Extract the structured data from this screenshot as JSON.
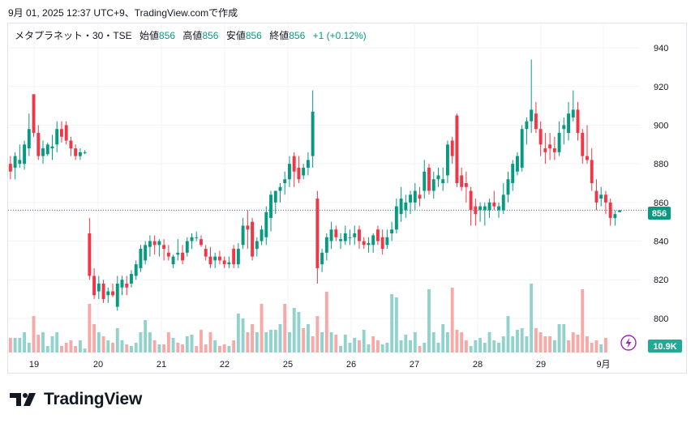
{
  "header": {
    "timestamp_line": "9月 01, 2025 12:37 UTC+9、TradingView.comで作成"
  },
  "legend": {
    "symbol": "メタプラネット・30・TSE",
    "open_label": "始値",
    "open": "856",
    "high_label": "高値",
    "high": "856",
    "low_label": "安値",
    "low": "856",
    "close_label": "終値",
    "close": "856",
    "change": "+1 (+0.12%)"
  },
  "price_tag": "856",
  "volume_tag": "10.9K",
  "brand": "TradingView",
  "colors": {
    "up": "#089981",
    "down": "#f23645",
    "up_vol": "#92d2cc",
    "down_vol": "#f7a9a7",
    "grid": "#f0f3fa"
  },
  "chart_data": {
    "type": "candlestick",
    "y_axis_ticks": [
      940,
      920,
      900,
      880,
      860,
      840,
      820,
      800
    ],
    "ylim": [
      792,
      948
    ],
    "x_axis_labels": [
      "19",
      "20",
      "21",
      "22",
      "25",
      "26",
      "27",
      "28",
      "29",
      "9月"
    ],
    "current_price": 856,
    "last_volume": "10.9K",
    "candles": [
      {
        "o": 880,
        "h": 884,
        "l": 872,
        "c": 876
      },
      {
        "o": 878,
        "h": 886,
        "l": 872,
        "c": 884
      },
      {
        "o": 880,
        "h": 890,
        "l": 878,
        "c": 882
      },
      {
        "o": 880,
        "h": 892,
        "l": 877,
        "c": 890
      },
      {
        "o": 888,
        "h": 906,
        "l": 884,
        "c": 898
      },
      {
        "o": 916,
        "h": 916,
        "l": 894,
        "c": 896
      },
      {
        "o": 896,
        "h": 900,
        "l": 882,
        "c": 884
      },
      {
        "o": 884,
        "h": 892,
        "l": 880,
        "c": 888
      },
      {
        "o": 885,
        "h": 891,
        "l": 884,
        "c": 890
      },
      {
        "o": 888,
        "h": 895,
        "l": 882,
        "c": 889
      },
      {
        "o": 890,
        "h": 902,
        "l": 886,
        "c": 898
      },
      {
        "o": 898,
        "h": 902,
        "l": 891,
        "c": 894
      },
      {
        "o": 900,
        "h": 902,
        "l": 890,
        "c": 892
      },
      {
        "o": 892,
        "h": 894,
        "l": 884,
        "c": 888
      },
      {
        "o": 888,
        "h": 890,
        "l": 882,
        "c": 884
      },
      {
        "o": 884,
        "h": 888,
        "l": 882,
        "c": 886
      },
      {
        "o": 886,
        "h": 887,
        "l": 885,
        "c": 886
      },
      {
        "o": 844,
        "h": 852,
        "l": 820,
        "c": 822
      },
      {
        "o": 822,
        "h": 826,
        "l": 810,
        "c": 812
      },
      {
        "o": 814,
        "h": 822,
        "l": 810,
        "c": 818
      },
      {
        "o": 818,
        "h": 820,
        "l": 808,
        "c": 810
      },
      {
        "o": 812,
        "h": 816,
        "l": 808,
        "c": 814
      },
      {
        "o": 814,
        "h": 818,
        "l": 811,
        "c": 812
      },
      {
        "o": 806,
        "h": 822,
        "l": 804,
        "c": 818
      },
      {
        "o": 816,
        "h": 822,
        "l": 812,
        "c": 820
      },
      {
        "o": 818,
        "h": 822,
        "l": 812,
        "c": 816
      },
      {
        "o": 818,
        "h": 825,
        "l": 816,
        "c": 823
      },
      {
        "o": 822,
        "h": 830,
        "l": 820,
        "c": 828
      },
      {
        "o": 826,
        "h": 838,
        "l": 824,
        "c": 836
      },
      {
        "o": 830,
        "h": 840,
        "l": 828,
        "c": 838
      },
      {
        "o": 837,
        "h": 843,
        "l": 832,
        "c": 840
      },
      {
        "o": 840,
        "h": 843,
        "l": 833,
        "c": 838
      },
      {
        "o": 838,
        "h": 841,
        "l": 832,
        "c": 840
      },
      {
        "o": 838,
        "h": 841,
        "l": 830,
        "c": 836
      },
      {
        "o": 834,
        "h": 838,
        "l": 830,
        "c": 832
      },
      {
        "o": 828,
        "h": 833,
        "l": 826,
        "c": 832
      },
      {
        "o": 833,
        "h": 841,
        "l": 830,
        "c": 834
      },
      {
        "o": 834,
        "h": 838,
        "l": 828,
        "c": 830
      },
      {
        "o": 834,
        "h": 842,
        "l": 832,
        "c": 840
      },
      {
        "o": 840,
        "h": 844,
        "l": 836,
        "c": 842
      },
      {
        "o": 842,
        "h": 845,
        "l": 840,
        "c": 842
      },
      {
        "o": 841,
        "h": 843,
        "l": 837,
        "c": 838
      },
      {
        "o": 836,
        "h": 838,
        "l": 830,
        "c": 832
      },
      {
        "o": 832,
        "h": 837,
        "l": 826,
        "c": 828
      },
      {
        "o": 830,
        "h": 834,
        "l": 826,
        "c": 832
      },
      {
        "o": 832,
        "h": 835,
        "l": 828,
        "c": 830
      },
      {
        "o": 830,
        "h": 832,
        "l": 826,
        "c": 828
      },
      {
        "o": 828,
        "h": 832,
        "l": 826,
        "c": 829
      },
      {
        "o": 836,
        "h": 838,
        "l": 826,
        "c": 828
      },
      {
        "o": 828,
        "h": 839,
        "l": 826,
        "c": 836
      },
      {
        "o": 838,
        "h": 852,
        "l": 836,
        "c": 848
      },
      {
        "o": 848,
        "h": 856,
        "l": 836,
        "c": 846
      },
      {
        "o": 850,
        "h": 852,
        "l": 830,
        "c": 832
      },
      {
        "o": 836,
        "h": 842,
        "l": 832,
        "c": 840
      },
      {
        "o": 840,
        "h": 848,
        "l": 838,
        "c": 846
      },
      {
        "o": 842,
        "h": 858,
        "l": 838,
        "c": 855
      },
      {
        "o": 852,
        "h": 866,
        "l": 845,
        "c": 864
      },
      {
        "o": 860,
        "h": 866,
        "l": 854,
        "c": 866
      },
      {
        "o": 866,
        "h": 870,
        "l": 860,
        "c": 868
      },
      {
        "o": 870,
        "h": 876,
        "l": 864,
        "c": 872
      },
      {
        "o": 872,
        "h": 884,
        "l": 868,
        "c": 880
      },
      {
        "o": 884,
        "h": 886,
        "l": 868,
        "c": 876
      },
      {
        "o": 878,
        "h": 884,
        "l": 870,
        "c": 872
      },
      {
        "o": 874,
        "h": 880,
        "l": 872,
        "c": 878
      },
      {
        "o": 878,
        "h": 886,
        "l": 874,
        "c": 882
      },
      {
        "o": 884,
        "h": 918,
        "l": 878,
        "c": 907
      },
      {
        "o": 862,
        "h": 866,
        "l": 818,
        "c": 826
      },
      {
        "o": 828,
        "h": 836,
        "l": 824,
        "c": 834
      },
      {
        "o": 834,
        "h": 844,
        "l": 830,
        "c": 842
      },
      {
        "o": 840,
        "h": 850,
        "l": 836,
        "c": 846
      },
      {
        "o": 846,
        "h": 848,
        "l": 840,
        "c": 842
      },
      {
        "o": 840,
        "h": 844,
        "l": 836,
        "c": 841
      },
      {
        "o": 840,
        "h": 848,
        "l": 838,
        "c": 844
      },
      {
        "o": 842,
        "h": 846,
        "l": 838,
        "c": 842
      },
      {
        "o": 842,
        "h": 848,
        "l": 838,
        "c": 844
      },
      {
        "o": 846,
        "h": 848,
        "l": 836,
        "c": 840
      },
      {
        "o": 840,
        "h": 842,
        "l": 836,
        "c": 838
      },
      {
        "o": 838,
        "h": 842,
        "l": 834,
        "c": 839
      },
      {
        "o": 838,
        "h": 844,
        "l": 834,
        "c": 843
      },
      {
        "o": 846,
        "h": 848,
        "l": 838,
        "c": 840
      },
      {
        "o": 842,
        "h": 846,
        "l": 833,
        "c": 836
      },
      {
        "o": 838,
        "h": 846,
        "l": 836,
        "c": 842
      },
      {
        "o": 844,
        "h": 850,
        "l": 840,
        "c": 846
      },
      {
        "o": 846,
        "h": 862,
        "l": 844,
        "c": 858
      },
      {
        "o": 854,
        "h": 868,
        "l": 850,
        "c": 862
      },
      {
        "o": 856,
        "h": 864,
        "l": 852,
        "c": 860
      },
      {
        "o": 860,
        "h": 866,
        "l": 854,
        "c": 864
      },
      {
        "o": 860,
        "h": 870,
        "l": 856,
        "c": 866
      },
      {
        "o": 864,
        "h": 868,
        "l": 858,
        "c": 862
      },
      {
        "o": 866,
        "h": 882,
        "l": 862,
        "c": 876
      },
      {
        "o": 878,
        "h": 880,
        "l": 864,
        "c": 866
      },
      {
        "o": 866,
        "h": 876,
        "l": 862,
        "c": 872
      },
      {
        "o": 872,
        "h": 878,
        "l": 868,
        "c": 874
      },
      {
        "o": 870,
        "h": 878,
        "l": 866,
        "c": 872
      },
      {
        "o": 874,
        "h": 892,
        "l": 870,
        "c": 890
      },
      {
        "o": 892,
        "h": 894,
        "l": 880,
        "c": 884
      },
      {
        "o": 905,
        "h": 906,
        "l": 868,
        "c": 870
      },
      {
        "o": 874,
        "h": 878,
        "l": 866,
        "c": 868
      },
      {
        "o": 870,
        "h": 876,
        "l": 860,
        "c": 868
      },
      {
        "o": 866,
        "h": 868,
        "l": 848,
        "c": 856
      },
      {
        "o": 858,
        "h": 862,
        "l": 848,
        "c": 854
      },
      {
        "o": 856,
        "h": 860,
        "l": 850,
        "c": 858
      },
      {
        "o": 856,
        "h": 860,
        "l": 848,
        "c": 858
      },
      {
        "o": 856,
        "h": 862,
        "l": 852,
        "c": 860
      },
      {
        "o": 860,
        "h": 866,
        "l": 856,
        "c": 858
      },
      {
        "o": 856,
        "h": 860,
        "l": 852,
        "c": 858
      },
      {
        "o": 856,
        "h": 870,
        "l": 854,
        "c": 864
      },
      {
        "o": 864,
        "h": 876,
        "l": 860,
        "c": 872
      },
      {
        "o": 870,
        "h": 882,
        "l": 866,
        "c": 880
      },
      {
        "o": 876,
        "h": 886,
        "l": 874,
        "c": 884
      },
      {
        "o": 878,
        "h": 900,
        "l": 876,
        "c": 898
      },
      {
        "o": 898,
        "h": 904,
        "l": 890,
        "c": 902
      },
      {
        "o": 902,
        "h": 934,
        "l": 896,
        "c": 908
      },
      {
        "o": 906,
        "h": 912,
        "l": 896,
        "c": 898
      },
      {
        "o": 898,
        "h": 902,
        "l": 884,
        "c": 890
      },
      {
        "o": 888,
        "h": 896,
        "l": 880,
        "c": 886
      },
      {
        "o": 890,
        "h": 896,
        "l": 882,
        "c": 888
      },
      {
        "o": 888,
        "h": 894,
        "l": 882,
        "c": 886
      },
      {
        "o": 886,
        "h": 902,
        "l": 884,
        "c": 896
      },
      {
        "o": 898,
        "h": 904,
        "l": 890,
        "c": 900
      },
      {
        "o": 896,
        "h": 912,
        "l": 892,
        "c": 906
      },
      {
        "o": 904,
        "h": 918,
        "l": 902,
        "c": 908
      },
      {
        "o": 908,
        "h": 912,
        "l": 892,
        "c": 896
      },
      {
        "o": 896,
        "h": 898,
        "l": 880,
        "c": 884
      },
      {
        "o": 884,
        "h": 900,
        "l": 880,
        "c": 882
      },
      {
        "o": 882,
        "h": 888,
        "l": 866,
        "c": 870
      },
      {
        "o": 866,
        "h": 872,
        "l": 856,
        "c": 860
      },
      {
        "o": 862,
        "h": 868,
        "l": 858,
        "c": 864
      },
      {
        "o": 864,
        "h": 866,
        "l": 854,
        "c": 860
      },
      {
        "o": 860,
        "h": 862,
        "l": 848,
        "c": 852
      },
      {
        "o": 852,
        "h": 856,
        "l": 848,
        "c": 854
      },
      {
        "o": 855,
        "h": 856,
        "l": 855,
        "c": 856
      }
    ],
    "volumes": [
      {
        "v": 0.18,
        "up": false
      },
      {
        "v": 0.18,
        "up": true
      },
      {
        "v": 0.18,
        "up": true
      },
      {
        "v": 0.25,
        "up": true
      },
      {
        "v": 0.12,
        "up": true
      },
      {
        "v": 0.45,
        "up": false
      },
      {
        "v": 0.22,
        "up": false
      },
      {
        "v": 0.25,
        "up": true
      },
      {
        "v": 0.08,
        "up": true
      },
      {
        "v": 0.2,
        "up": true
      },
      {
        "v": 0.25,
        "up": true
      },
      {
        "v": 0.08,
        "up": false
      },
      {
        "v": 0.12,
        "up": false
      },
      {
        "v": 0.15,
        "up": false
      },
      {
        "v": 0.08,
        "up": false
      },
      {
        "v": 0.15,
        "up": true
      },
      {
        "v": 0.05,
        "up": true
      },
      {
        "v": 0.6,
        "up": false
      },
      {
        "v": 0.35,
        "up": false
      },
      {
        "v": 0.25,
        "up": true
      },
      {
        "v": 0.2,
        "up": false
      },
      {
        "v": 0.15,
        "up": true
      },
      {
        "v": 0.12,
        "up": false
      },
      {
        "v": 0.3,
        "up": true
      },
      {
        "v": 0.15,
        "up": true
      },
      {
        "v": 0.1,
        "up": false
      },
      {
        "v": 0.08,
        "up": true
      },
      {
        "v": 0.12,
        "up": true
      },
      {
        "v": 0.25,
        "up": true
      },
      {
        "v": 0.4,
        "up": true
      },
      {
        "v": 0.25,
        "up": true
      },
      {
        "v": 0.15,
        "up": false
      },
      {
        "v": 0.1,
        "up": true
      },
      {
        "v": 0.1,
        "up": false
      },
      {
        "v": 0.25,
        "up": false
      },
      {
        "v": 0.18,
        "up": true
      },
      {
        "v": 0.12,
        "up": false
      },
      {
        "v": 0.1,
        "up": false
      },
      {
        "v": 0.2,
        "up": true
      },
      {
        "v": 0.22,
        "up": true
      },
      {
        "v": 0.08,
        "up": false
      },
      {
        "v": 0.28,
        "up": false
      },
      {
        "v": 0.1,
        "up": false
      },
      {
        "v": 0.25,
        "up": false
      },
      {
        "v": 0.15,
        "up": true
      },
      {
        "v": 0.08,
        "up": false
      },
      {
        "v": 0.1,
        "up": false
      },
      {
        "v": 0.08,
        "up": true
      },
      {
        "v": 0.15,
        "up": false
      },
      {
        "v": 0.48,
        "up": true
      },
      {
        "v": 0.42,
        "up": true
      },
      {
        "v": 0.25,
        "up": false
      },
      {
        "v": 0.35,
        "up": false
      },
      {
        "v": 0.25,
        "up": true
      },
      {
        "v": 0.6,
        "up": false
      },
      {
        "v": 0.25,
        "up": true
      },
      {
        "v": 0.28,
        "up": true
      },
      {
        "v": 0.28,
        "up": true
      },
      {
        "v": 0.35,
        "up": true
      },
      {
        "v": 0.6,
        "up": false
      },
      {
        "v": 0.25,
        "up": true
      },
      {
        "v": 0.55,
        "up": true
      },
      {
        "v": 0.5,
        "up": true
      },
      {
        "v": 0.3,
        "up": false
      },
      {
        "v": 0.35,
        "up": true
      },
      {
        "v": 0.2,
        "up": false
      },
      {
        "v": 0.45,
        "up": false
      },
      {
        "v": 0.25,
        "up": true
      },
      {
        "v": 0.75,
        "up": false
      },
      {
        "v": 0.25,
        "up": true
      },
      {
        "v": 0.22,
        "up": false
      },
      {
        "v": 0.08,
        "up": true
      },
      {
        "v": 0.22,
        "up": true
      },
      {
        "v": 0.12,
        "up": true
      },
      {
        "v": 0.18,
        "up": true
      },
      {
        "v": 0.15,
        "up": false
      },
      {
        "v": 0.28,
        "up": true
      },
      {
        "v": 0.1,
        "up": true
      },
      {
        "v": 0.2,
        "up": false
      },
      {
        "v": 0.15,
        "up": false
      },
      {
        "v": 0.1,
        "up": true
      },
      {
        "v": 0.12,
        "up": true
      },
      {
        "v": 0.72,
        "up": true
      },
      {
        "v": 0.68,
        "up": true
      },
      {
        "v": 0.15,
        "up": true
      },
      {
        "v": 0.22,
        "up": true
      },
      {
        "v": 0.15,
        "up": true
      },
      {
        "v": 0.25,
        "up": true
      },
      {
        "v": 0.08,
        "up": false
      },
      {
        "v": 0.12,
        "up": true
      },
      {
        "v": 0.78,
        "up": true
      },
      {
        "v": 0.25,
        "up": true
      },
      {
        "v": 0.12,
        "up": true
      },
      {
        "v": 0.35,
        "up": true
      },
      {
        "v": 0.25,
        "up": true
      },
      {
        "v": 0.8,
        "up": false
      },
      {
        "v": 0.28,
        "up": false
      },
      {
        "v": 0.25,
        "up": false
      },
      {
        "v": 0.15,
        "up": false
      },
      {
        "v": 0.08,
        "up": true
      },
      {
        "v": 0.15,
        "up": true
      },
      {
        "v": 0.18,
        "up": true
      },
      {
        "v": 0.12,
        "up": true
      },
      {
        "v": 0.25,
        "up": true
      },
      {
        "v": 0.15,
        "up": true
      },
      {
        "v": 0.12,
        "up": true
      },
      {
        "v": 0.2,
        "up": true
      },
      {
        "v": 0.45,
        "up": true
      },
      {
        "v": 0.2,
        "up": true
      },
      {
        "v": 0.28,
        "up": true
      },
      {
        "v": 0.3,
        "up": true
      },
      {
        "v": 0.2,
        "up": true
      },
      {
        "v": 0.85,
        "up": true
      },
      {
        "v": 0.3,
        "up": false
      },
      {
        "v": 0.25,
        "up": false
      },
      {
        "v": 0.2,
        "up": false
      },
      {
        "v": 0.2,
        "up": false
      },
      {
        "v": 0.15,
        "up": true
      },
      {
        "v": 0.35,
        "up": true
      },
      {
        "v": 0.35,
        "up": true
      },
      {
        "v": 0.15,
        "up": false
      },
      {
        "v": 0.25,
        "up": false
      },
      {
        "v": 0.22,
        "up": false
      },
      {
        "v": 0.78,
        "up": false
      },
      {
        "v": 0.2,
        "up": false
      },
      {
        "v": 0.12,
        "up": false
      },
      {
        "v": 0.15,
        "up": false
      },
      {
        "v": 0.1,
        "up": true
      },
      {
        "v": 0.18,
        "up": false
      }
    ]
  }
}
